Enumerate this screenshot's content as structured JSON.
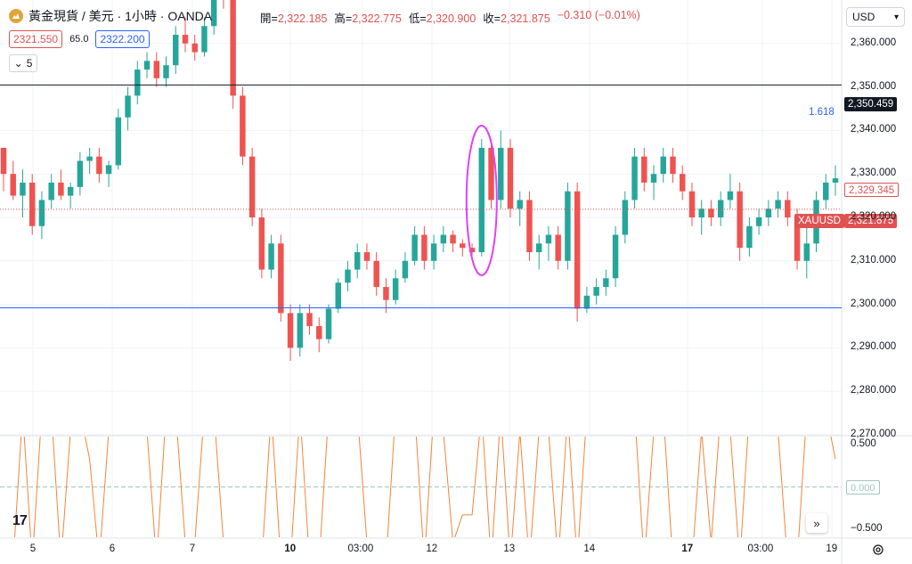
{
  "header": {
    "symbol_title": "黃金現貨 / 美元 · 1小時 · OANDA",
    "symbol_icon": "gold-coin-icon"
  },
  "ohlc": {
    "open_label": "開=",
    "open": "2,322.185",
    "high_label": "高=",
    "high": "2,322.775",
    "low_label": "低=",
    "low": "2,320.900",
    "close_label": "收=",
    "close": "2,321.875",
    "change": "−0.310 (−0.01%)"
  },
  "bidask": {
    "bid": "2321.550",
    "spread": "65.0",
    "ask": "2322.200"
  },
  "collapse": {
    "count": "5"
  },
  "currency": {
    "label": "USD"
  },
  "price_tags": {
    "resistance": "2,350.459",
    "last": "2,321.875",
    "symbol": "XAUUSD",
    "secondary": "2,329.345",
    "oscillator_zero": "0.000"
  },
  "fib_label": "1.618",
  "colors": {
    "up": "#26a69a",
    "down": "#ef5350",
    "oscillator": "#f2853c",
    "resistance_line": "#131722",
    "support_line": "#2962ff",
    "highlight": "#e040fb",
    "last_price": "#e05252"
  },
  "chart_data": {
    "type": "candlestick",
    "y_axis_ticks": [
      "2,360.000",
      "2,350.000",
      "2,340.000",
      "2,330.000",
      "2,320.000",
      "2,310.000",
      "2,300.000",
      "2,290.000",
      "2,280.000",
      "2,270.000"
    ],
    "x_axis_ticks": [
      "5",
      "6",
      "7",
      "10",
      "03:00",
      "12",
      "13",
      "14",
      "17",
      "03:00",
      "19"
    ],
    "x_axis_bold": [
      "10",
      "17"
    ],
    "ylim": [
      2270,
      2370
    ],
    "reference_lines": {
      "resistance": 2350.459,
      "support": 2299.2,
      "last": 2321.875
    },
    "oscillator": {
      "ticks": [
        "0.500",
        "0.000",
        "−0.500"
      ],
      "ylim": [
        -0.6,
        0.6
      ]
    },
    "candles": [
      [
        2336,
        2336,
        2326,
        2330
      ],
      [
        2330,
        2333,
        2324,
        2325
      ],
      [
        2325,
        2331,
        2320,
        2328
      ],
      [
        2328,
        2330,
        2316,
        2318
      ],
      [
        2318,
        2326,
        2315,
        2324
      ],
      [
        2324,
        2330,
        2322,
        2328
      ],
      [
        2328,
        2331,
        2324,
        2325
      ],
      [
        2325,
        2328,
        2322,
        2327
      ],
      [
        2327,
        2335,
        2325,
        2333
      ],
      [
        2333,
        2336,
        2330,
        2334
      ],
      [
        2334,
        2336,
        2328,
        2330
      ],
      [
        2330,
        2333,
        2327,
        2332
      ],
      [
        2332,
        2345,
        2331,
        2343
      ],
      [
        2343,
        2350,
        2340,
        2348
      ],
      [
        2348,
        2356,
        2346,
        2354
      ],
      [
        2354,
        2358,
        2352,
        2356
      ],
      [
        2356,
        2358,
        2350,
        2352
      ],
      [
        2352,
        2357,
        2350,
        2355
      ],
      [
        2355,
        2364,
        2353,
        2362
      ],
      [
        2362,
        2366,
        2358,
        2360
      ],
      [
        2360,
        2362,
        2356,
        2358
      ],
      [
        2358,
        2366,
        2357,
        2364
      ],
      [
        2364,
        2374,
        2362,
        2372
      ],
      [
        2372,
        2376,
        2368,
        2370
      ],
      [
        2370,
        2372,
        2345,
        2348
      ],
      [
        2348,
        2350,
        2332,
        2334
      ],
      [
        2334,
        2336,
        2318,
        2320
      ],
      [
        2320,
        2322,
        2306,
        2308
      ],
      [
        2308,
        2316,
        2306,
        2314
      ],
      [
        2314,
        2316,
        2296,
        2298
      ],
      [
        2298,
        2300,
        2287,
        2290
      ],
      [
        2290,
        2300,
        2288,
        2298
      ],
      [
        2298,
        2300,
        2293,
        2295
      ],
      [
        2295,
        2297,
        2289,
        2292
      ],
      [
        2292,
        2300,
        2291,
        2299
      ],
      [
        2299,
        2306,
        2298,
        2305
      ],
      [
        2305,
        2310,
        2303,
        2308
      ],
      [
        2308,
        2314,
        2306,
        2312
      ],
      [
        2312,
        2314,
        2308,
        2310
      ],
      [
        2310,
        2312,
        2302,
        2304
      ],
      [
        2304,
        2306,
        2298,
        2301
      ],
      [
        2301,
        2308,
        2300,
        2306
      ],
      [
        2306,
        2312,
        2305,
        2310
      ],
      [
        2310,
        2318,
        2309,
        2316
      ],
      [
        2316,
        2318,
        2308,
        2310
      ],
      [
        2310,
        2316,
        2308,
        2314
      ],
      [
        2314,
        2318,
        2312,
        2316
      ],
      [
        2316,
        2317,
        2312,
        2314
      ],
      [
        2314,
        2315,
        2311,
        2313
      ],
      [
        2313,
        2314,
        2311,
        2312
      ],
      [
        2312,
        2338,
        2311,
        2336
      ],
      [
        2336,
        2338,
        2322,
        2324
      ],
      [
        2324,
        2340,
        2322,
        2336
      ],
      [
        2336,
        2338,
        2320,
        2322
      ],
      [
        2322,
        2326,
        2318,
        2324
      ],
      [
        2324,
        2326,
        2310,
        2312
      ],
      [
        2312,
        2316,
        2308,
        2314
      ],
      [
        2314,
        2318,
        2310,
        2316
      ],
      [
        2316,
        2318,
        2308,
        2310
      ],
      [
        2310,
        2328,
        2308,
        2326
      ],
      [
        2326,
        2328,
        2296,
        2299
      ],
      [
        2299,
        2304,
        2298,
        2302
      ],
      [
        2302,
        2306,
        2300,
        2304
      ],
      [
        2304,
        2308,
        2302,
        2306
      ],
      [
        2306,
        2318,
        2304,
        2316
      ],
      [
        2316,
        2326,
        2314,
        2324
      ],
      [
        2324,
        2336,
        2322,
        2334
      ],
      [
        2334,
        2336,
        2326,
        2328
      ],
      [
        2328,
        2332,
        2324,
        2330
      ],
      [
        2330,
        2336,
        2328,
        2334
      ],
      [
        2334,
        2336,
        2328,
        2330
      ],
      [
        2330,
        2332,
        2324,
        2326
      ],
      [
        2326,
        2328,
        2318,
        2320
      ],
      [
        2320,
        2324,
        2316,
        2322
      ],
      [
        2322,
        2324,
        2318,
        2320
      ],
      [
        2320,
        2326,
        2318,
        2324
      ],
      [
        2324,
        2330,
        2322,
        2326
      ],
      [
        2326,
        2328,
        2310,
        2313
      ],
      [
        2313,
        2320,
        2311,
        2318
      ],
      [
        2318,
        2322,
        2316,
        2320
      ],
      [
        2320,
        2324,
        2318,
        2322
      ],
      [
        2322,
        2326,
        2320,
        2324
      ],
      [
        2324,
        2326,
        2318,
        2320
      ],
      [
        2320,
        2322,
        2308,
        2310
      ],
      [
        2310,
        2318,
        2306,
        2314
      ],
      [
        2314,
        2326,
        2312,
        2324
      ],
      [
        2324,
        2330,
        2322,
        2328
      ],
      [
        2328,
        2332,
        2325,
        2329
      ]
    ]
  }
}
